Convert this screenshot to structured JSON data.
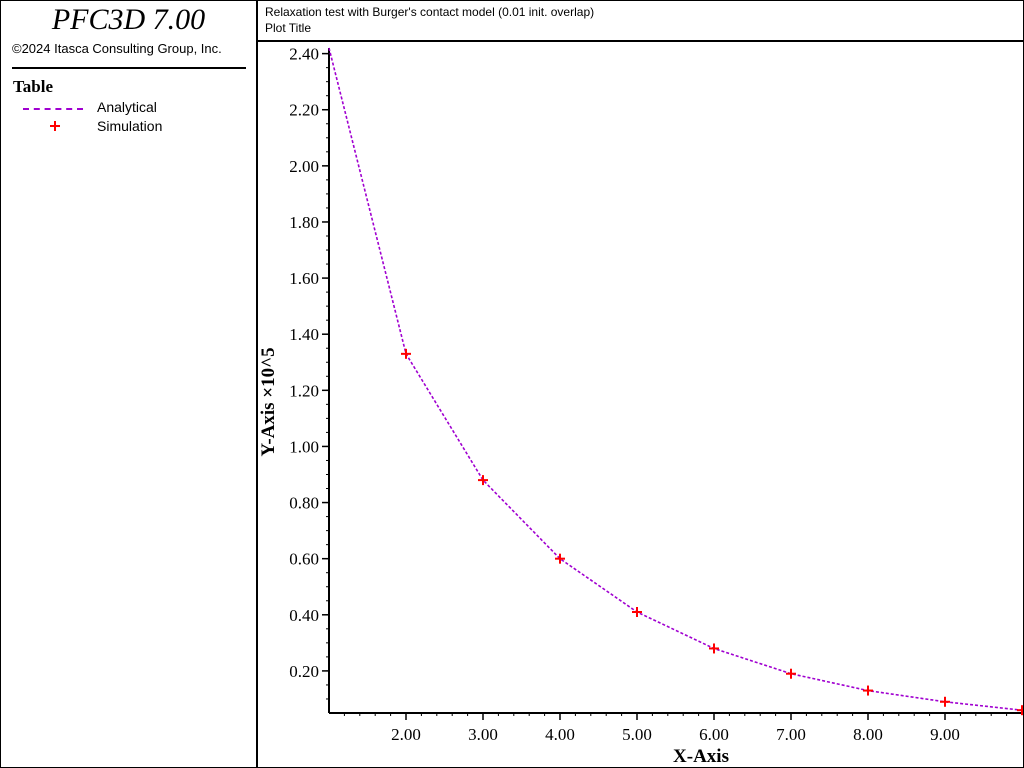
{
  "app": {
    "title": "PFC3D 7.00",
    "copyright": "©2024 Itasca Consulting Group, Inc."
  },
  "legend": {
    "heading": "Table",
    "entries": [
      {
        "label": "Analytical"
      },
      {
        "label": "Simulation"
      }
    ]
  },
  "header": {
    "caption": "Relaxation test with Burger's contact model (0.01 init. overlap)",
    "plot_title": "Plot Title"
  },
  "colors": {
    "analytical": "#a000d0",
    "simulation": "#ff0000"
  },
  "chart_data": {
    "type": "line",
    "xlabel": "X-Axis",
    "ylabel": "Y-Axis ×10^5",
    "xlim": [
      1,
      10
    ],
    "ylim": [
      0.05,
      2.42
    ],
    "grid": false,
    "legend_placement": "left-panel",
    "x_ticks": [
      2,
      3,
      4,
      5,
      6,
      7,
      8,
      9
    ],
    "x_tick_labels": [
      "2.00",
      "3.00",
      "4.00",
      "5.00",
      "6.00",
      "7.00",
      "8.00",
      "9.00"
    ],
    "y_ticks": [
      0.2,
      0.4,
      0.6,
      0.8,
      1.0,
      1.2,
      1.4,
      1.6,
      1.8,
      2.0,
      2.2,
      2.4
    ],
    "y_tick_labels": [
      "0.20",
      "0.40",
      "0.60",
      "0.80",
      "1.00",
      "1.20",
      "1.40",
      "1.60",
      "1.80",
      "2.00",
      "2.20",
      "2.40"
    ],
    "series": [
      {
        "name": "Analytical",
        "style": "dashed-line",
        "x": [
          1,
          2,
          3,
          4,
          5,
          6,
          7,
          8,
          9,
          10
        ],
        "y": [
          2.42,
          1.33,
          0.88,
          0.6,
          0.41,
          0.28,
          0.19,
          0.13,
          0.09,
          0.06
        ]
      },
      {
        "name": "Simulation",
        "style": "plus-markers",
        "x": [
          2,
          3,
          4,
          5,
          6,
          7,
          8,
          9,
          10
        ],
        "y": [
          1.33,
          0.88,
          0.6,
          0.41,
          0.28,
          0.19,
          0.13,
          0.09,
          0.06
        ]
      }
    ]
  }
}
